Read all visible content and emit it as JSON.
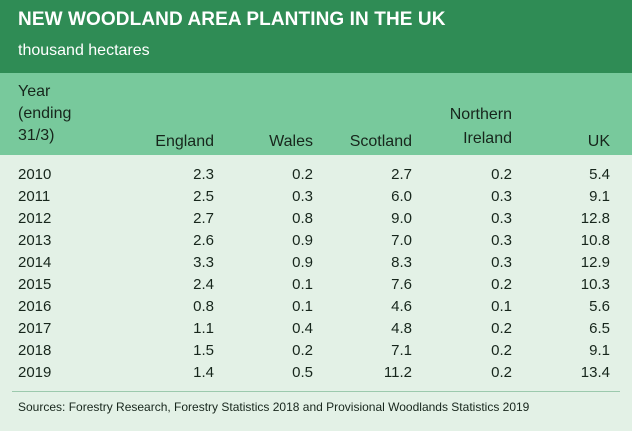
{
  "header": {
    "title": "NEW WOODLAND AREA PLANTING IN THE UK",
    "subtitle": "thousand hectares"
  },
  "table": {
    "columns": {
      "year": [
        "Year",
        "(ending",
        "31/3)"
      ],
      "england": "England",
      "wales": "Wales",
      "scotland": "Scotland",
      "northern_ireland": [
        "Northern",
        "Ireland"
      ],
      "uk": "UK"
    },
    "rows": [
      {
        "year": "2010",
        "england": "2.3",
        "wales": "0.2",
        "scotland": "2.7",
        "ni": "0.2",
        "uk": "5.4"
      },
      {
        "year": "2011",
        "england": "2.5",
        "wales": "0.3",
        "scotland": "6.0",
        "ni": "0.3",
        "uk": "9.1"
      },
      {
        "year": "2012",
        "england": "2.7",
        "wales": "0.8",
        "scotland": "9.0",
        "ni": "0.3",
        "uk": "12.8"
      },
      {
        "year": "2013",
        "england": "2.6",
        "wales": "0.9",
        "scotland": "7.0",
        "ni": "0.3",
        "uk": "10.8"
      },
      {
        "year": "2014",
        "england": "3.3",
        "wales": "0.9",
        "scotland": "8.3",
        "ni": "0.3",
        "uk": "12.9"
      },
      {
        "year": "2015",
        "england": "2.4",
        "wales": "0.1",
        "scotland": "7.6",
        "ni": "0.2",
        "uk": "10.3"
      },
      {
        "year": "2016",
        "england": "0.8",
        "wales": "0.1",
        "scotland": "4.6",
        "ni": "0.1",
        "uk": "5.6"
      },
      {
        "year": "2017",
        "england": "1.1",
        "wales": "0.4",
        "scotland": "4.8",
        "ni": "0.2",
        "uk": "6.5"
      },
      {
        "year": "2018",
        "england": "1.5",
        "wales": "0.2",
        "scotland": "7.1",
        "ni": "0.2",
        "uk": "9.1"
      },
      {
        "year": "2019",
        "england": "1.4",
        "wales": "0.5",
        "scotland": "11.2",
        "ni": "0.2",
        "uk": "13.4"
      }
    ]
  },
  "footer": {
    "sources": "Sources:  Forestry Research, Forestry Statistics 2018 and Provisional Woodlands Statistics 2019"
  },
  "colors": {
    "header_bg": "#2f8c55",
    "column_header_bg": "#78c99c",
    "body_bg": "#e3f1e6"
  }
}
